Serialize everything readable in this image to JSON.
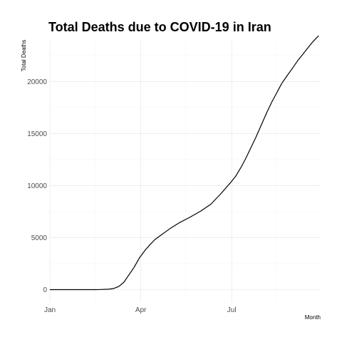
{
  "chart_data": {
    "type": "line",
    "title": "Total Deaths due to COVID-19 in Iran",
    "xlabel": "Month",
    "ylabel": "Total Deaths",
    "x_axis": {
      "type": "date",
      "range": [
        "2020-01-01",
        "2020-09-28"
      ],
      "ticks": [
        {
          "date": "2020-01-01",
          "label": "Jan"
        },
        {
          "date": "2020-04-01",
          "label": "Apr"
        },
        {
          "date": "2020-07-01",
          "label": "Jul"
        }
      ],
      "minor_ticks": [
        "2020-02-15",
        "2020-05-16",
        "2020-08-15"
      ]
    },
    "y_axis": {
      "range": [
        -1200,
        24000
      ],
      "ticks": [
        0,
        5000,
        10000,
        15000,
        20000
      ],
      "tick_labels": [
        "0",
        "5000",
        "10000",
        "15000",
        "20000"
      ],
      "minor_ticks": [
        2500,
        7500,
        12500,
        17500,
        22500
      ]
    },
    "grid": true,
    "legend": "none",
    "line_color": "#000000",
    "x": [
      "2020-01-01",
      "2020-02-01",
      "2020-02-15",
      "2020-02-19",
      "2020-02-29",
      "2020-03-05",
      "2020-03-10",
      "2020-03-15",
      "2020-03-20",
      "2020-03-25",
      "2020-03-31",
      "2020-04-05",
      "2020-04-10",
      "2020-04-15",
      "2020-04-20",
      "2020-04-30",
      "2020-05-10",
      "2020-05-20",
      "2020-05-31",
      "2020-06-10",
      "2020-06-20",
      "2020-06-30",
      "2020-07-05",
      "2020-07-10",
      "2020-07-15",
      "2020-07-20",
      "2020-07-25",
      "2020-07-31",
      "2020-08-05",
      "2020-08-10",
      "2020-08-15",
      "2020-08-20",
      "2020-08-25",
      "2020-08-31",
      "2020-09-05",
      "2020-09-10",
      "2020-09-15",
      "2020-09-20",
      "2020-09-26"
    ],
    "y": [
      0,
      0,
      0,
      2,
      40,
      110,
      300,
      700,
      1400,
      2100,
      3100,
      3750,
      4300,
      4800,
      5150,
      5850,
      6450,
      6950,
      7550,
      8200,
      9200,
      10300,
      10900,
      11700,
      12600,
      13600,
      14600,
      15900,
      17000,
      18000,
      18900,
      19800,
      20500,
      21300,
      22000,
      22600,
      23200,
      23800,
      24400
    ]
  }
}
